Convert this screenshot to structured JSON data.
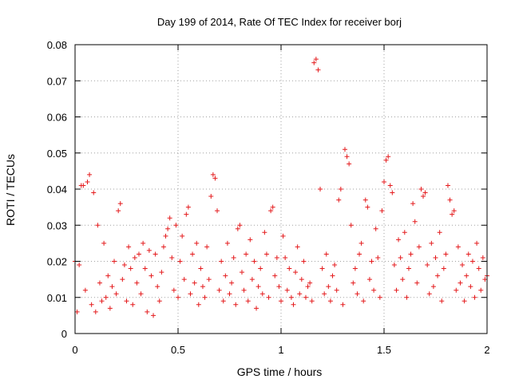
{
  "chart_data": {
    "type": "scatter",
    "title": "Day 199 of 2014, Rate Of TEC Index for receiver borj",
    "xlabel": "GPS time / hours",
    "ylabel": "ROTI / TECUs",
    "xlim": [
      0,
      2
    ],
    "ylim": [
      0,
      0.08
    ],
    "x_ticks": [
      0,
      0.5,
      1,
      1.5,
      2
    ],
    "x_tick_labels": [
      "0",
      "0.5",
      "1",
      "1.5",
      "2"
    ],
    "y_ticks": [
      0,
      0.01,
      0.02,
      0.03,
      0.04,
      0.05,
      0.06,
      0.07,
      0.08
    ],
    "y_tick_labels": [
      "0",
      "0.01",
      "0.02",
      "0.03",
      "0.04",
      "0.05",
      "0.06",
      "0.07",
      "0.08"
    ],
    "grid": true,
    "marker": "+",
    "color": "#e41a1c",
    "series": [
      {
        "name": "ROTI",
        "description": "dense band of points mostly between 0.004 and 0.025 TECUs across 0-2 hours",
        "x": [
          0.0,
          0.01,
          0.02,
          0.03,
          0.04,
          0.05,
          0.06,
          0.07,
          0.08,
          0.09,
          0.1,
          0.11,
          0.12,
          0.13,
          0.14,
          0.15,
          0.16,
          0.17,
          0.18,
          0.19,
          0.2,
          0.21,
          0.22,
          0.23,
          0.24,
          0.25,
          0.26,
          0.27,
          0.28,
          0.29,
          0.3,
          0.31,
          0.32,
          0.33,
          0.34,
          0.35,
          0.36,
          0.37,
          0.38,
          0.39,
          0.4,
          0.41,
          0.42,
          0.43,
          0.44,
          0.45,
          0.46,
          0.47,
          0.48,
          0.49,
          0.5,
          0.51,
          0.52,
          0.53,
          0.54,
          0.55,
          0.56,
          0.57,
          0.58,
          0.59,
          0.6,
          0.61,
          0.62,
          0.63,
          0.64,
          0.65,
          0.66,
          0.67,
          0.68,
          0.69,
          0.7,
          0.71,
          0.72,
          0.73,
          0.74,
          0.75,
          0.76,
          0.77,
          0.78,
          0.79,
          0.8,
          0.81,
          0.82,
          0.83,
          0.84,
          0.85,
          0.86,
          0.87,
          0.88,
          0.89,
          0.9,
          0.91,
          0.92,
          0.93,
          0.94,
          0.95,
          0.96,
          0.97,
          0.98,
          0.99,
          1.0,
          1.01,
          1.02,
          1.03,
          1.04,
          1.05,
          1.06,
          1.07,
          1.08,
          1.09,
          1.1,
          1.11,
          1.12,
          1.13,
          1.14,
          1.15,
          1.16,
          1.17,
          1.18,
          1.19,
          1.2,
          1.21,
          1.22,
          1.23,
          1.24,
          1.25,
          1.26,
          1.27,
          1.28,
          1.29,
          1.3,
          1.31,
          1.32,
          1.33,
          1.34,
          1.35,
          1.36,
          1.37,
          1.38,
          1.39,
          1.4,
          1.41,
          1.42,
          1.43,
          1.44,
          1.45,
          1.46,
          1.47,
          1.48,
          1.49,
          1.5,
          1.51,
          1.52,
          1.53,
          1.54,
          1.55,
          1.56,
          1.57,
          1.58,
          1.59,
          1.6,
          1.61,
          1.62,
          1.63,
          1.64,
          1.65,
          1.66,
          1.67,
          1.68,
          1.69,
          1.7,
          1.71,
          1.72,
          1.73,
          1.74,
          1.75,
          1.76,
          1.77,
          1.78,
          1.79,
          1.8,
          1.81,
          1.82,
          1.83,
          1.84,
          1.85,
          1.86,
          1.87,
          1.88,
          1.89,
          1.9,
          1.91,
          1.92,
          1.93,
          1.94,
          1.95,
          1.96,
          1.97,
          1.98,
          1.99,
          2.0
        ],
        "y": [
          0.02,
          0.006,
          0.019,
          0.041,
          0.041,
          0.012,
          0.042,
          0.044,
          0.008,
          0.039,
          0.006,
          0.03,
          0.014,
          0.009,
          0.025,
          0.01,
          0.016,
          0.007,
          0.013,
          0.02,
          0.011,
          0.034,
          0.036,
          0.015,
          0.019,
          0.009,
          0.024,
          0.018,
          0.008,
          0.021,
          0.014,
          0.022,
          0.011,
          0.025,
          0.018,
          0.006,
          0.023,
          0.016,
          0.005,
          0.022,
          0.013,
          0.009,
          0.017,
          0.024,
          0.027,
          0.029,
          0.032,
          0.021,
          0.012,
          0.03,
          0.01,
          0.02,
          0.027,
          0.015,
          0.033,
          0.035,
          0.011,
          0.022,
          0.014,
          0.025,
          0.008,
          0.018,
          0.013,
          0.01,
          0.024,
          0.015,
          0.038,
          0.044,
          0.043,
          0.034,
          0.012,
          0.02,
          0.009,
          0.016,
          0.025,
          0.011,
          0.014,
          0.021,
          0.008,
          0.029,
          0.03,
          0.017,
          0.012,
          0.022,
          0.009,
          0.026,
          0.015,
          0.02,
          0.007,
          0.013,
          0.018,
          0.011,
          0.028,
          0.022,
          0.01,
          0.034,
          0.035,
          0.016,
          0.021,
          0.013,
          0.009,
          0.027,
          0.021,
          0.012,
          0.018,
          0.01,
          0.008,
          0.017,
          0.024,
          0.011,
          0.015,
          0.02,
          0.01,
          0.013,
          0.014,
          0.009,
          0.075,
          0.076,
          0.073,
          0.04,
          0.018,
          0.011,
          0.022,
          0.013,
          0.009,
          0.016,
          0.019,
          0.012,
          0.037,
          0.04,
          0.008,
          0.051,
          0.049,
          0.047,
          0.03,
          0.014,
          0.018,
          0.011,
          0.022,
          0.025,
          0.009,
          0.037,
          0.035,
          0.015,
          0.02,
          0.012,
          0.029,
          0.021,
          0.01,
          0.034,
          0.042,
          0.048,
          0.049,
          0.041,
          0.039,
          0.019,
          0.012,
          0.026,
          0.021,
          0.015,
          0.028,
          0.01,
          0.018,
          0.022,
          0.036,
          0.031,
          0.014,
          0.024,
          0.04,
          0.038,
          0.039,
          0.019,
          0.011,
          0.025,
          0.013,
          0.021,
          0.016,
          0.028,
          0.009,
          0.018,
          0.022,
          0.041,
          0.037,
          0.033,
          0.034,
          0.012,
          0.024,
          0.014,
          0.019,
          0.009,
          0.016,
          0.022,
          0.013,
          0.02,
          0.01,
          0.025,
          0.018,
          0.012,
          0.021,
          0.015,
          0.016
        ]
      }
    ]
  }
}
